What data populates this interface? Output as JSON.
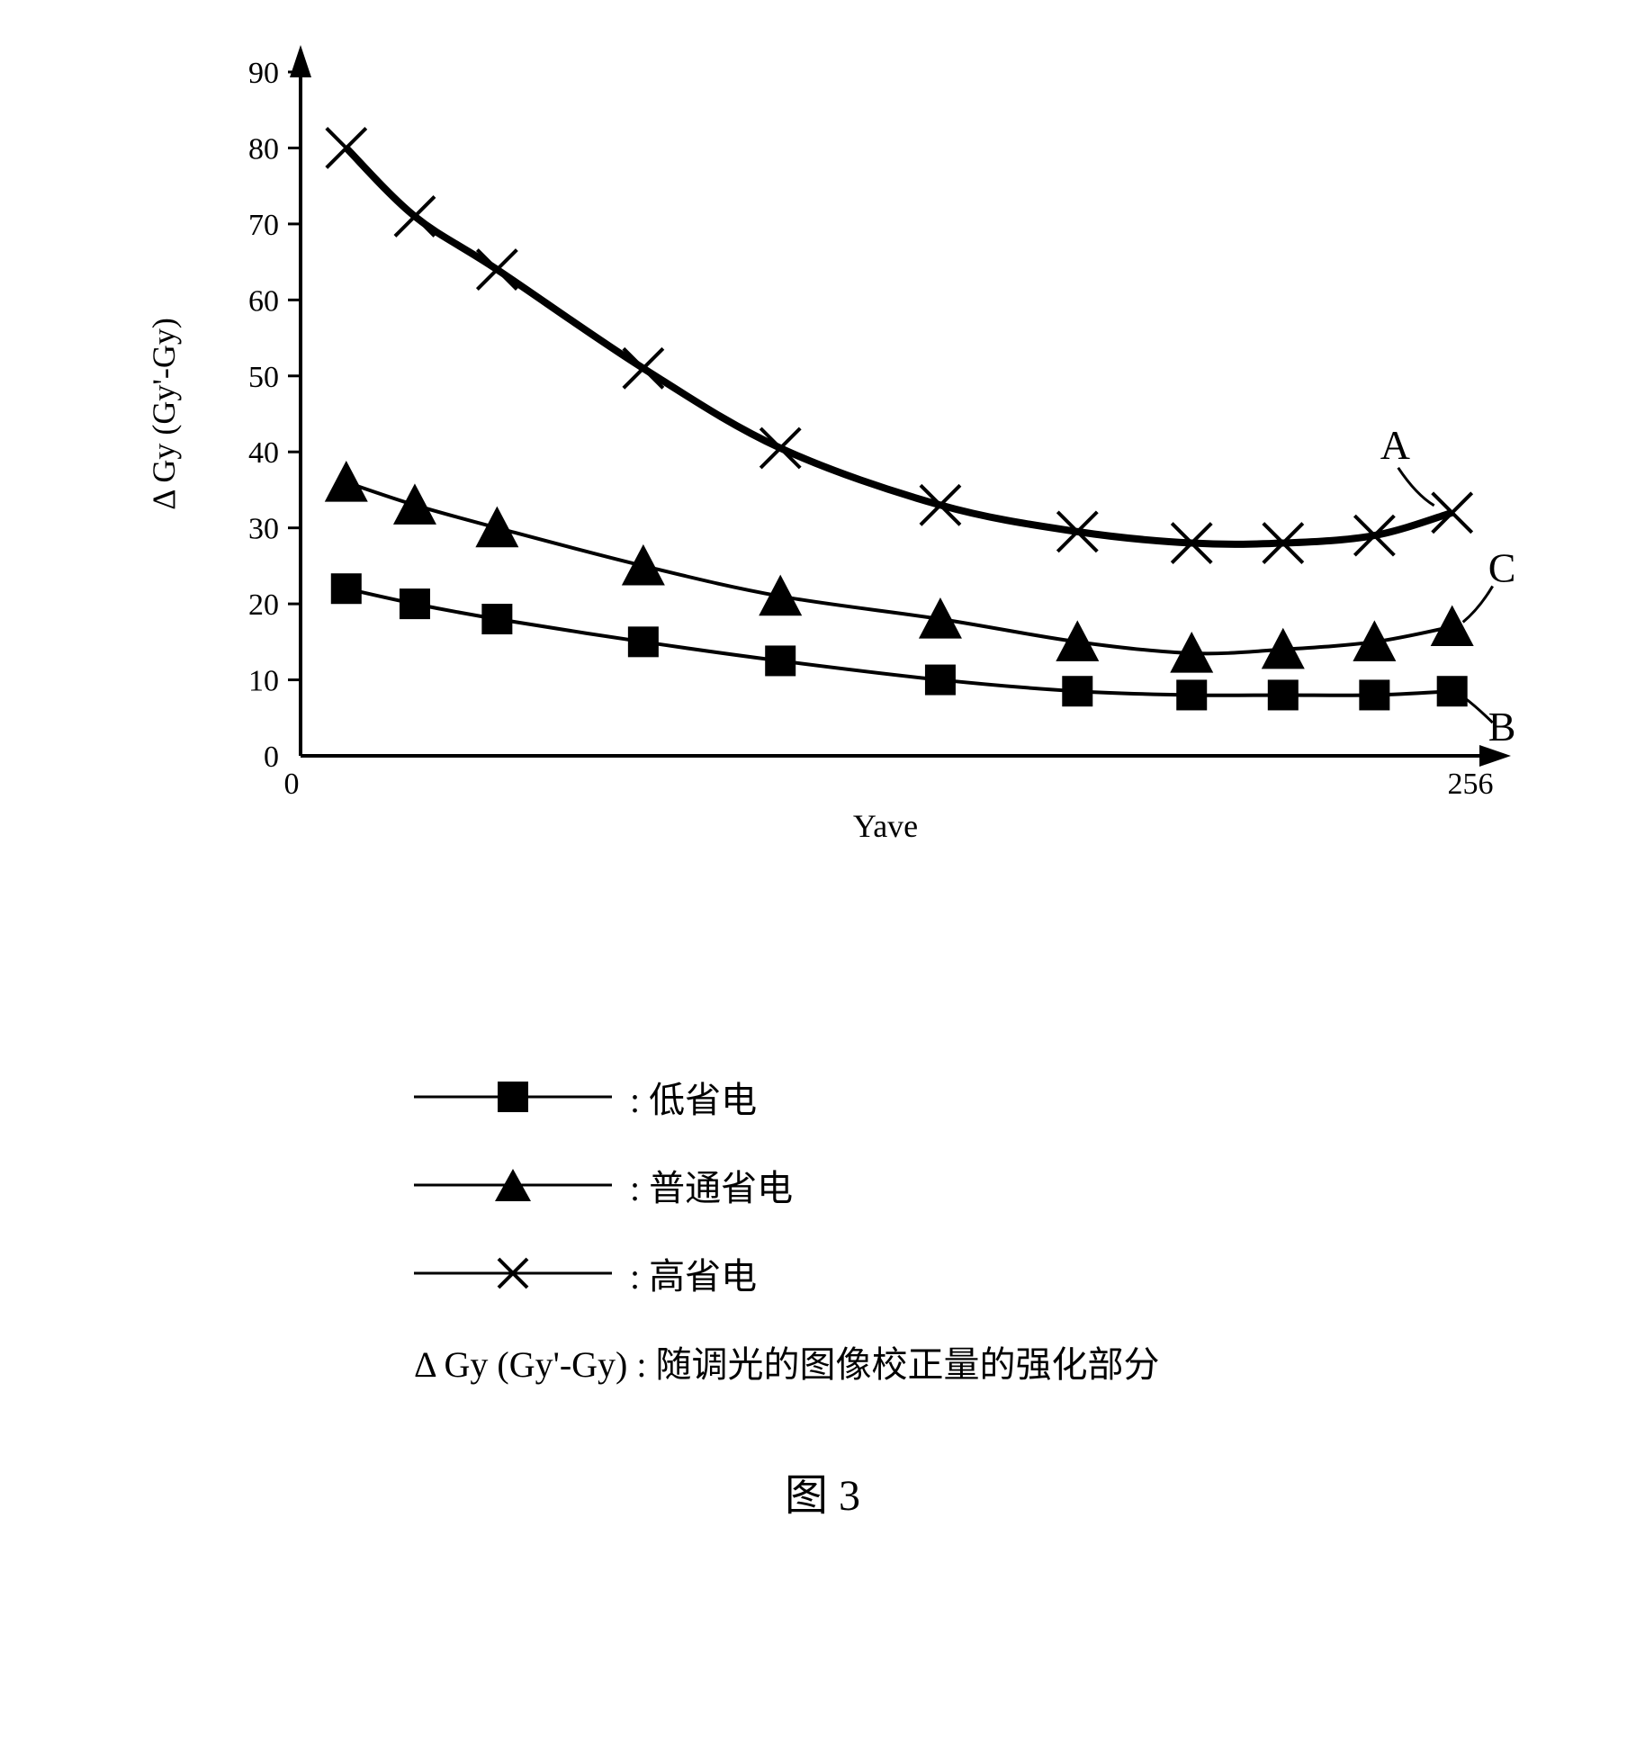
{
  "chart": {
    "type": "line",
    "xlabel": "Yave",
    "ylabel": "Δ Gy (Gy'-Gy)",
    "xlim": [
      0,
      256
    ],
    "ylim": [
      0,
      90
    ],
    "ytick_step": 10,
    "yticks": [
      0,
      10,
      20,
      30,
      40,
      50,
      60,
      70,
      80,
      90
    ],
    "xtick_labels": [
      "0",
      "256"
    ],
    "background_color": "#ffffff",
    "axis_color": "#000000",
    "axis_width": 4,
    "tick_fontsize": 34,
    "label_fontsize": 36,
    "series_label_fontsize": 46,
    "x_values": [
      10,
      25,
      43,
      75,
      105,
      140,
      170,
      195,
      215,
      235,
      252
    ],
    "series": [
      {
        "name": "low_power",
        "label": "低省电",
        "marker": "square",
        "marker_size": 17,
        "color": "#000000",
        "line_width": 4,
        "curve_label": "B",
        "y_values": [
          22,
          20,
          18,
          15,
          12.5,
          10,
          8.5,
          8,
          8,
          8,
          8.5
        ]
      },
      {
        "name": "normal_power",
        "label": "普通省电",
        "marker": "triangle",
        "marker_size": 20,
        "color": "#000000",
        "line_width": 4,
        "curve_label": "C",
        "y_values": [
          36,
          33,
          30,
          25,
          21,
          18,
          15,
          13.5,
          14,
          15,
          17
        ]
      },
      {
        "name": "high_power",
        "label": "高省电",
        "marker": "x",
        "marker_size": 22,
        "color": "#000000",
        "line_width": 8,
        "curve_label": "A",
        "y_values": [
          80,
          71,
          64,
          51,
          40.5,
          33,
          29.5,
          28,
          28,
          29,
          32
        ]
      }
    ]
  },
  "legend": {
    "items": [
      {
        "marker": "square",
        "label": ": 低省电"
      },
      {
        "marker": "triangle",
        "label": ": 普通省电"
      },
      {
        "marker": "x",
        "label": ": 高省电"
      }
    ]
  },
  "note": "Δ Gy (Gy'-Gy) : 随调光的图像校正量的强化部分",
  "caption": "图 3"
}
